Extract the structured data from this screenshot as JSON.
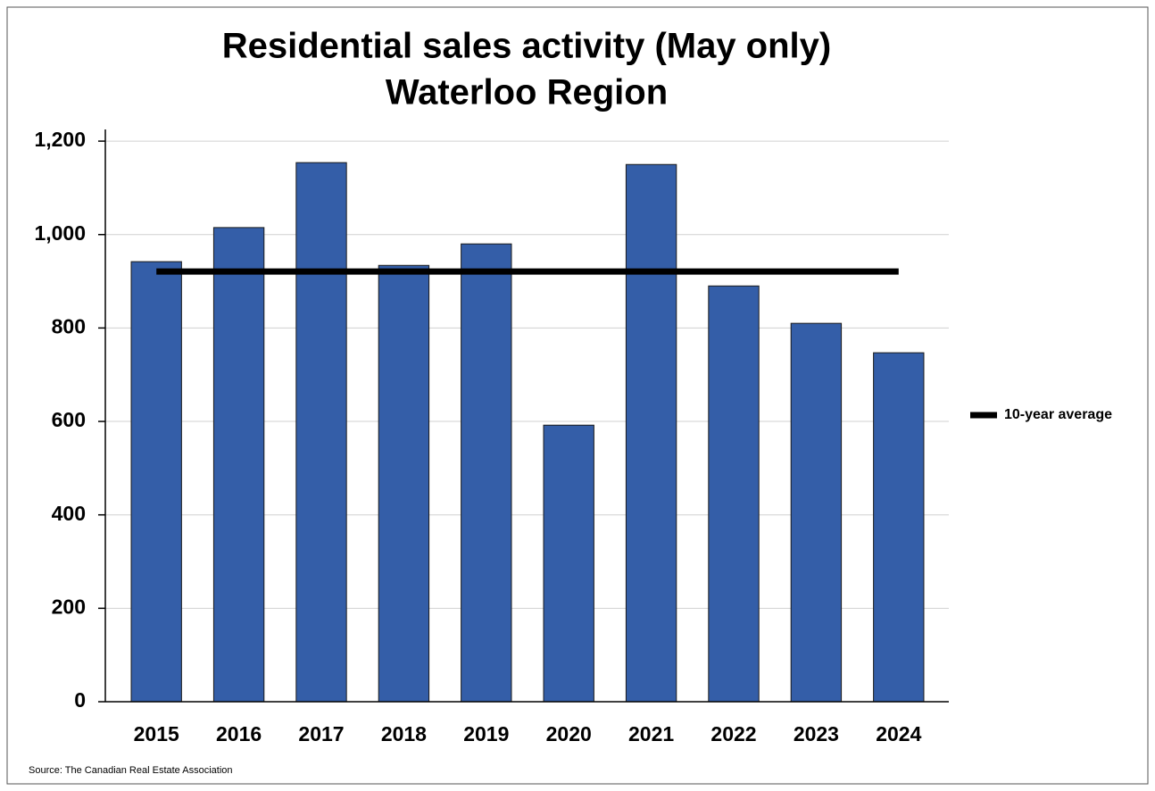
{
  "chart_data": {
    "type": "bar",
    "title": "Residential sales activity (May only)",
    "subtitle": "Waterloo Region",
    "categories": [
      "2015",
      "2016",
      "2017",
      "2018",
      "2019",
      "2020",
      "2021",
      "2022",
      "2023",
      "2024"
    ],
    "values": [
      942,
      1015,
      1154,
      934,
      980,
      592,
      1150,
      890,
      810,
      747
    ],
    "color": "#345ea8",
    "average": {
      "name": "10-year average",
      "value": 921,
      "color": "#000000"
    },
    "ylim": [
      0,
      1225
    ],
    "yticks": [
      0,
      200,
      400,
      600,
      800,
      {
        "value": 1000,
        "label": "1,000"
      },
      {
        "value": 1200,
        "label": "1,200"
      }
    ],
    "grid": true,
    "legend": "right",
    "source": "Source: The Canadian Real Estate Association"
  }
}
